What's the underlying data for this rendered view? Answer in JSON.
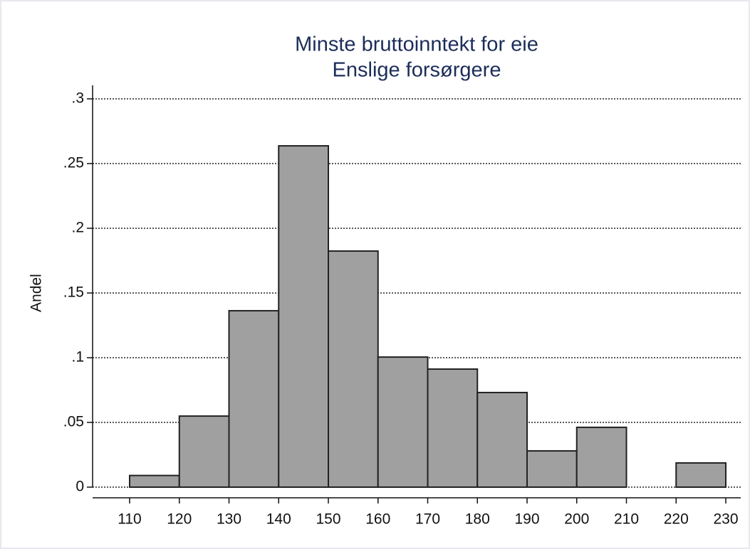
{
  "chart_data": {
    "type": "histogram",
    "title": [
      "Minste bruttoinntekt for eie",
      "Enslige forsørgere"
    ],
    "ylabel": "Andel",
    "bins": [
      110,
      120,
      130,
      140,
      150,
      160,
      170,
      180,
      190,
      200,
      210,
      220,
      230
    ],
    "values": [
      0.009,
      0.0549,
      0.1363,
      0.2637,
      0.1824,
      0.1005,
      0.0912,
      0.0731,
      0.028,
      0.0462,
      0,
      0.0187
    ],
    "color": "#a0a0a0",
    "xlim": [
      110,
      230
    ],
    "xticks": [
      110,
      120,
      130,
      140,
      150,
      160,
      170,
      180,
      190,
      200,
      210,
      220,
      230
    ],
    "ylim": [
      0,
      0.3
    ],
    "yticks": [
      0,
      {
        "value": 0.05,
        "label": ".05"
      },
      {
        "value": 0.1,
        "label": ".1"
      },
      {
        "value": 0.15,
        "label": ".15"
      },
      {
        "value": 0.2,
        "label": ".2"
      },
      {
        "value": 0.25,
        "label": ".25"
      },
      {
        "value": 0.3,
        "label": ".3"
      }
    ],
    "grid": true
  }
}
